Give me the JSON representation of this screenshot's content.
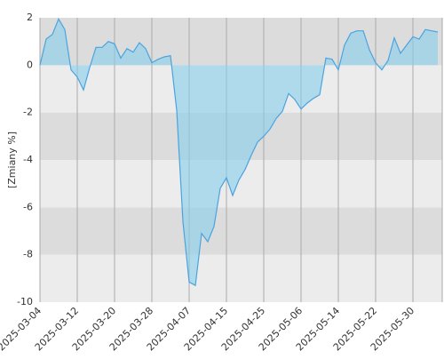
{
  "chart_data": {
    "type": "area",
    "y_label": "[Zmiany %]",
    "categories": [
      "2025-03-04",
      null,
      null,
      null,
      null,
      null,
      "2025-03-12",
      null,
      null,
      null,
      null,
      null,
      "2025-03-20",
      null,
      null,
      null,
      null,
      null,
      "2025-03-28",
      null,
      null,
      null,
      null,
      null,
      "2025-04-07",
      null,
      null,
      null,
      null,
      null,
      "2025-04-15",
      null,
      null,
      null,
      null,
      null,
      "2025-04-25",
      null,
      null,
      null,
      null,
      null,
      "2025-05-06",
      null,
      null,
      null,
      null,
      null,
      "2025-05-14",
      null,
      null,
      null,
      null,
      null,
      "2025-05-22",
      null,
      null,
      null,
      null,
      null,
      "2025-05-30",
      null,
      null,
      null,
      null
    ],
    "values": [
      0,
      1.1,
      1.3,
      1.95,
      1.5,
      -0.2,
      -0.5,
      -1.05,
      -0.1,
      0.75,
      0.75,
      1.0,
      0.9,
      0.3,
      0.7,
      0.55,
      0.95,
      0.7,
      0.1,
      0.25,
      0.35,
      0.4,
      -1.9,
      -6.6,
      -9.15,
      -9.3,
      -7.1,
      -7.45,
      -6.8,
      -5.2,
      -4.75,
      -5.5,
      -4.85,
      -4.4,
      -3.8,
      -3.25,
      -3.0,
      -2.7,
      -2.25,
      -1.95,
      -1.2,
      -1.45,
      -1.85,
      -1.6,
      -1.4,
      -1.25,
      0.3,
      0.25,
      -0.2,
      0.85,
      1.35,
      1.45,
      1.45,
      0.65,
      0.1,
      -0.2,
      0.2,
      1.15,
      0.5,
      0.85,
      1.2,
      1.1,
      1.5,
      1.45,
      1.4
    ],
    "color": "#4aa3df",
    "fill": "#87ceeb",
    "ylim": [
      -10,
      2
    ],
    "yticks": [
      -10,
      -8,
      -6,
      -4,
      -2,
      0,
      2
    ],
    "grid": true
  }
}
